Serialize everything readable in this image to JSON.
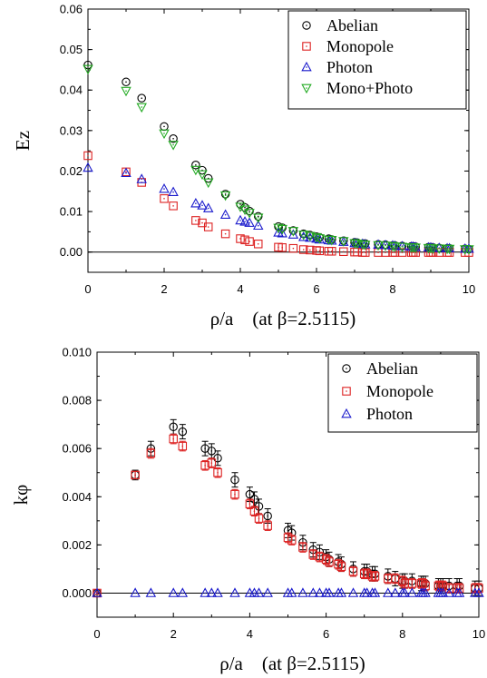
{
  "chart_data": [
    {
      "type": "scatter",
      "xlabel": "ρ/a    (at β=2.5115)",
      "ylabel": "Ez",
      "xlim": [
        0,
        10
      ],
      "ylim": [
        -0.005,
        0.06
      ],
      "xticks": [
        "0",
        "2",
        "4",
        "6",
        "8",
        "10"
      ],
      "yticks": [
        "0.00",
        "0.01",
        "0.02",
        "0.03",
        "0.04",
        "0.05",
        "0.06"
      ],
      "legend_position": "top-right",
      "series": [
        {
          "name": "Abelian",
          "marker": "circle",
          "color": "#000000",
          "x": [
            0,
            1,
            1.41,
            2,
            2.24,
            2.83,
            3,
            3.16,
            3.61,
            4,
            4.12,
            4.24,
            4.47,
            5,
            5.1,
            5.39,
            5.66,
            5.83,
            6,
            6.08,
            6.32,
            6.4,
            6.71,
            7,
            7.07,
            7.21,
            7.28,
            7.62,
            7.81,
            8,
            8.06,
            8.25,
            8.49,
            8.54,
            8.6,
            8.94,
            9,
            9.06,
            9.22,
            9.43,
            9.49,
            9.9,
            10
          ],
          "y": [
            0.0462,
            0.042,
            0.038,
            0.031,
            0.028,
            0.0215,
            0.0202,
            0.0182,
            0.0143,
            0.0118,
            0.011,
            0.0101,
            0.0088,
            0.0063,
            0.006,
            0.0053,
            0.0045,
            0.0042,
            0.0038,
            0.0036,
            0.0033,
            0.0031,
            0.0028,
            0.0024,
            0.0023,
            0.0021,
            0.0021,
            0.0019,
            0.0018,
            0.0016,
            0.0016,
            0.0015,
            0.0014,
            0.0014,
            0.0013,
            0.0012,
            0.0012,
            0.0011,
            0.001,
            0.0009,
            0.0009,
            0.0008,
            0.0007
          ]
        },
        {
          "name": "Monopole",
          "marker": "square",
          "color": "#dd2222",
          "x": [
            0,
            1,
            1.41,
            2,
            2.24,
            2.83,
            3,
            3.16,
            3.61,
            4,
            4.12,
            4.24,
            4.47,
            5,
            5.1,
            5.39,
            5.66,
            5.83,
            6,
            6.08,
            6.32,
            6.4,
            6.71,
            7,
            7.07,
            7.21,
            7.28,
            7.62,
            7.81,
            8,
            8.06,
            8.25,
            8.49,
            8.54,
            8.6,
            8.94,
            9,
            9.06,
            9.22,
            9.43,
            9.49,
            9.9,
            10
          ],
          "y": [
            0.0238,
            0.0198,
            0.0172,
            0.0132,
            0.0114,
            0.0078,
            0.0072,
            0.0062,
            0.0045,
            0.0033,
            0.003,
            0.0026,
            0.002,
            0.0012,
            0.0011,
            0.0009,
            0.0006,
            0.0005,
            0.0004,
            0.0003,
            0.0002,
            0.0002,
            0.0001,
            0,
            0,
            -0.0001,
            -0.0001,
            -0.0001,
            -0.0001,
            -0.0001,
            -0.0001,
            -0.0001,
            -0.0001,
            -0.0001,
            -0.0001,
            -0.0001,
            -0.0001,
            -0.0001,
            -0.0001,
            -0.0001,
            -0.0001,
            -0.0001,
            -0.0001
          ]
        },
        {
          "name": "Photon",
          "marker": "triangle-up",
          "color": "#1a1acc",
          "x": [
            0,
            1,
            1.41,
            2,
            2.24,
            2.83,
            3,
            3.16,
            3.61,
            4,
            4.12,
            4.24,
            4.47,
            5,
            5.1,
            5.39,
            5.66,
            5.83,
            6,
            6.08,
            6.32,
            6.4,
            6.71,
            7,
            7.07,
            7.21,
            7.28,
            7.62,
            7.81,
            8,
            8.06,
            8.25,
            8.49,
            8.54,
            8.6,
            8.94,
            9,
            9.06,
            9.22,
            9.43,
            9.49,
            9.9,
            10
          ],
          "y": [
            0.0208,
            0.0195,
            0.018,
            0.0156,
            0.0148,
            0.012,
            0.0115,
            0.0108,
            0.0092,
            0.0078,
            0.0075,
            0.0072,
            0.0065,
            0.0048,
            0.0046,
            0.0043,
            0.0037,
            0.0035,
            0.0033,
            0.0031,
            0.0029,
            0.0028,
            0.0025,
            0.0022,
            0.0021,
            0.002,
            0.0019,
            0.0018,
            0.0017,
            0.0016,
            0.0015,
            0.0014,
            0.0013,
            0.0013,
            0.0012,
            0.0011,
            0.0011,
            0.001,
            0.001,
            0.0009,
            0.0009,
            0.0008,
            0.0008
          ]
        },
        {
          "name": "Mono+Photo",
          "marker": "triangle-down",
          "color": "#22aa22",
          "x": [
            0,
            1,
            1.41,
            2,
            2.24,
            2.83,
            3,
            3.16,
            3.61,
            4,
            4.12,
            4.24,
            4.47,
            5,
            5.1,
            5.39,
            5.66,
            5.83,
            6,
            6.08,
            6.32,
            6.4,
            6.71,
            7,
            7.07,
            7.21,
            7.28,
            7.62,
            7.81,
            8,
            8.06,
            8.25,
            8.49,
            8.54,
            8.6,
            8.94,
            9,
            9.06,
            9.22,
            9.43,
            9.49,
            9.9,
            10
          ],
          "y": [
            0.0452,
            0.0398,
            0.0358,
            0.0293,
            0.0265,
            0.0203,
            0.0192,
            0.0172,
            0.014,
            0.0112,
            0.0105,
            0.0097,
            0.0085,
            0.006,
            0.0057,
            0.0052,
            0.0043,
            0.004,
            0.0037,
            0.0034,
            0.0031,
            0.003,
            0.0027,
            0.0022,
            0.0021,
            0.0019,
            0.0018,
            0.0017,
            0.0016,
            0.0015,
            0.0014,
            0.0013,
            0.0012,
            0.0012,
            0.0011,
            0.001,
            0.001,
            0.0009,
            0.0009,
            0.0008,
            0.0008,
            0.0007,
            0.0007
          ]
        }
      ]
    },
    {
      "type": "scatter",
      "xlabel": "ρ/a    (at β=2.5115)",
      "ylabel": "kφ",
      "xlim": [
        0,
        10
      ],
      "ylim": [
        -0.001,
        0.01
      ],
      "xticks": [
        "0",
        "2",
        "4",
        "6",
        "8",
        "10"
      ],
      "yticks": [
        "0.000",
        "0.002",
        "0.004",
        "0.006",
        "0.008",
        "0.010"
      ],
      "legend_position": "top-right",
      "series": [
        {
          "name": "Abelian",
          "marker": "circle",
          "color": "#000000",
          "x": [
            0,
            1,
            1.41,
            2,
            2.24,
            2.83,
            3,
            3.16,
            3.61,
            4,
            4.12,
            4.24,
            4.47,
            5,
            5.1,
            5.39,
            5.66,
            5.83,
            6,
            6.08,
            6.32,
            6.4,
            6.71,
            7,
            7.07,
            7.21,
            7.28,
            7.62,
            7.81,
            8,
            8.06,
            8.25,
            8.49,
            8.54,
            8.6,
            8.94,
            9,
            9.06,
            9.22,
            9.43,
            9.49,
            9.9,
            10
          ],
          "y": [
            0,
            0.0049,
            0.006,
            0.0069,
            0.0067,
            0.006,
            0.0059,
            0.0056,
            0.0047,
            0.0041,
            0.0039,
            0.0036,
            0.0032,
            0.0026,
            0.0025,
            0.0021,
            0.0018,
            0.0017,
            0.0015,
            0.0014,
            0.0013,
            0.0012,
            0.001,
            0.0009,
            0.0009,
            0.0008,
            0.0008,
            0.0007,
            0.0006,
            0.0005,
            0.0005,
            0.0005,
            0.0004,
            0.0004,
            0.0004,
            0.0003,
            0.0003,
            0.0003,
            0.0003,
            0.0003,
            0.0003,
            0.0002,
            0.0002
          ],
          "yerr": [
            5e-05,
            0.0002,
            0.0003,
            0.0003,
            0.0003,
            0.0003,
            0.0003,
            0.0003,
            0.0003,
            0.0003,
            0.0003,
            0.0003,
            0.0003,
            0.0003,
            0.0003,
            0.0003,
            0.0003,
            0.0003,
            0.0003,
            0.0003,
            0.0003,
            0.0003,
            0.0003,
            0.0003,
            0.0003,
            0.0003,
            0.0003,
            0.0003,
            0.0003,
            0.0003,
            0.0003,
            0.0003,
            0.0003,
            0.0003,
            0.0003,
            0.0003,
            0.0003,
            0.0003,
            0.0003,
            0.0003,
            0.0003,
            0.0003,
            0.0003
          ]
        },
        {
          "name": "Monopole",
          "marker": "square",
          "color": "#dd2222",
          "x": [
            0,
            1,
            1.41,
            2,
            2.24,
            2.83,
            3,
            3.16,
            3.61,
            4,
            4.12,
            4.24,
            4.47,
            5,
            5.1,
            5.39,
            5.66,
            5.83,
            6,
            6.08,
            6.32,
            6.4,
            6.71,
            7,
            7.07,
            7.21,
            7.28,
            7.62,
            7.81,
            8,
            8.06,
            8.25,
            8.49,
            8.54,
            8.6,
            8.94,
            9,
            9.06,
            9.22,
            9.43,
            9.49,
            9.9,
            10
          ],
          "y": [
            0,
            0.0049,
            0.0058,
            0.0064,
            0.0061,
            0.0053,
            0.0054,
            0.005,
            0.0041,
            0.0037,
            0.0034,
            0.0031,
            0.0028,
            0.0023,
            0.0022,
            0.0019,
            0.0016,
            0.0015,
            0.0014,
            0.0013,
            0.0012,
            0.0011,
            0.0009,
            0.0008,
            0.0008,
            0.0007,
            0.0007,
            0.0006,
            0.0006,
            0.0005,
            0.0004,
            0.0004,
            0.0004,
            0.0004,
            0.0003,
            0.0003,
            0.0003,
            0.0003,
            0.0002,
            0.0002,
            0.0002,
            0.0002,
            0.0002
          ],
          "yerr": [
            5e-05,
            0.00015,
            0.0002,
            0.0002,
            0.0002,
            0.0002,
            0.0002,
            0.0002,
            0.0002,
            0.0002,
            0.0002,
            0.0002,
            0.0002,
            0.0002,
            0.0002,
            0.0002,
            0.0002,
            0.0002,
            0.0002,
            0.0002,
            0.0002,
            0.0002,
            0.0002,
            0.0002,
            0.0002,
            0.0002,
            0.0002,
            0.0002,
            0.0002,
            0.0002,
            0.0002,
            0.0002,
            0.0002,
            0.0002,
            0.0002,
            0.0002,
            0.0002,
            0.0002,
            0.0002,
            0.0002,
            0.0002,
            0.0002,
            0.0002
          ]
        },
        {
          "name": "Photon",
          "marker": "triangle-up",
          "color": "#1a1acc",
          "x": [
            0,
            1,
            1.41,
            2,
            2.24,
            2.83,
            3,
            3.16,
            3.61,
            4,
            4.12,
            4.24,
            4.47,
            5,
            5.1,
            5.39,
            5.66,
            5.83,
            6,
            6.08,
            6.32,
            6.4,
            6.71,
            7,
            7.07,
            7.21,
            7.28,
            7.62,
            7.81,
            8,
            8.06,
            8.25,
            8.49,
            8.54,
            8.6,
            8.94,
            9,
            9.06,
            9.22,
            9.43,
            9.49,
            9.9,
            10
          ],
          "y": [
            0,
            0,
            0,
            0,
            0,
            0,
            0,
            0,
            0,
            0,
            0,
            0,
            0,
            0,
            0,
            0,
            0,
            0,
            0,
            0,
            0,
            0,
            0,
            0,
            0,
            0,
            0,
            0,
            0,
            0,
            0,
            0,
            0,
            0,
            0,
            0,
            0,
            0,
            0,
            0,
            0,
            0,
            0
          ]
        }
      ]
    }
  ]
}
